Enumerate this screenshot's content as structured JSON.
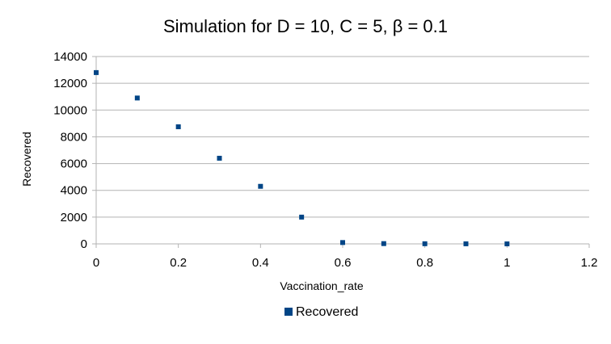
{
  "chart_data": {
    "type": "scatter",
    "title": "Simulation for D = 10, C = 5, β = 0.1",
    "xlabel": "Vaccination_rate",
    "ylabel": "Recovered",
    "xlim": [
      0,
      1.2
    ],
    "ylim": [
      0,
      14000
    ],
    "xticks": [
      "0",
      "0.2",
      "0.4",
      "0.6",
      "0.8",
      "1",
      "1.2"
    ],
    "yticks": [
      "0",
      "2000",
      "4000",
      "6000",
      "8000",
      "10000",
      "12000",
      "14000"
    ],
    "grid": "horizontal",
    "legend": "bottom",
    "series": [
      {
        "name": "Recovered",
        "color": "#004586",
        "marker": "square",
        "x": [
          0,
          0.1,
          0.2,
          0.3,
          0.4,
          0.5,
          0.6,
          0.7,
          0.8,
          0.9,
          1.0
        ],
        "y": [
          12800,
          10900,
          8750,
          6400,
          4300,
          2000,
          100,
          20,
          10,
          5,
          0
        ]
      }
    ]
  }
}
